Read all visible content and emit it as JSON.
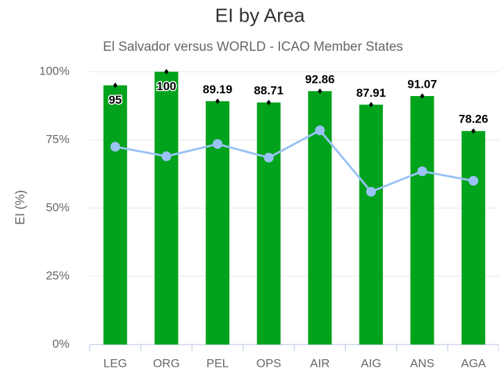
{
  "chart_data": {
    "type": "bar",
    "title": "EI by Area",
    "subtitle": "El Salvador versus WORLD - ICAO Member States",
    "y_label": "EI (%)",
    "categories": [
      "LEG",
      "ORG",
      "PEL",
      "OPS",
      "AIR",
      "AIG",
      "ANS",
      "AGA"
    ],
    "series": [
      {
        "type": "bar",
        "color": "#00a31b",
        "values": [
          95,
          100,
          89.19,
          88.71,
          92.86,
          87.91,
          91.07,
          78.26
        ]
      },
      {
        "type": "line",
        "color": "#99c2f5",
        "values": [
          72.5,
          69,
          73.5,
          68.5,
          78.5,
          56,
          63.5,
          60
        ]
      }
    ],
    "ylim": [
      0,
      100
    ],
    "yticks": [
      {
        "value": 0,
        "label": "0%"
      },
      {
        "value": 25,
        "label": "25%"
      },
      {
        "value": 50,
        "label": "50%"
      },
      {
        "value": 75,
        "label": "75%"
      },
      {
        "value": 100,
        "label": "100%"
      }
    ],
    "grid": true
  }
}
